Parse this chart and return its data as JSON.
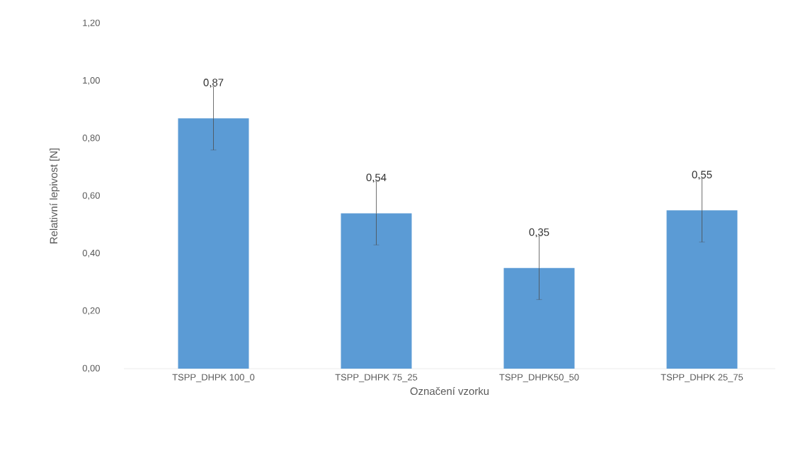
{
  "chart_data": {
    "type": "bar",
    "xlabel": "Označení vzorku",
    "ylabel": "Relativní lepivost [N]",
    "categories": [
      "TSPP_DHPK 100_0",
      "TSPP_DHPK 75_25",
      "TSPP_DHPK50_50",
      "TSPP_DHPK 25_75"
    ],
    "values": [
      0.87,
      0.54,
      0.35,
      0.55
    ],
    "errors": [
      0.11,
      0.11,
      0.11,
      0.11
    ],
    "value_labels": [
      "0,87",
      "0,54",
      "0,35",
      "0,55"
    ],
    "color": "#5b9bd5",
    "ylim": [
      0,
      1.2
    ],
    "yticks": [
      {
        "value": 0,
        "label": "0,00"
      },
      {
        "value": 0.2,
        "label": "0,20"
      },
      {
        "value": 0.4,
        "label": "0,40"
      },
      {
        "value": 0.6,
        "label": "0,60"
      },
      {
        "value": 0.8,
        "label": "0,80"
      },
      {
        "value": 1.0,
        "label": "1,00"
      },
      {
        "value": 1.2,
        "label": "1,20"
      }
    ],
    "grid": false
  }
}
